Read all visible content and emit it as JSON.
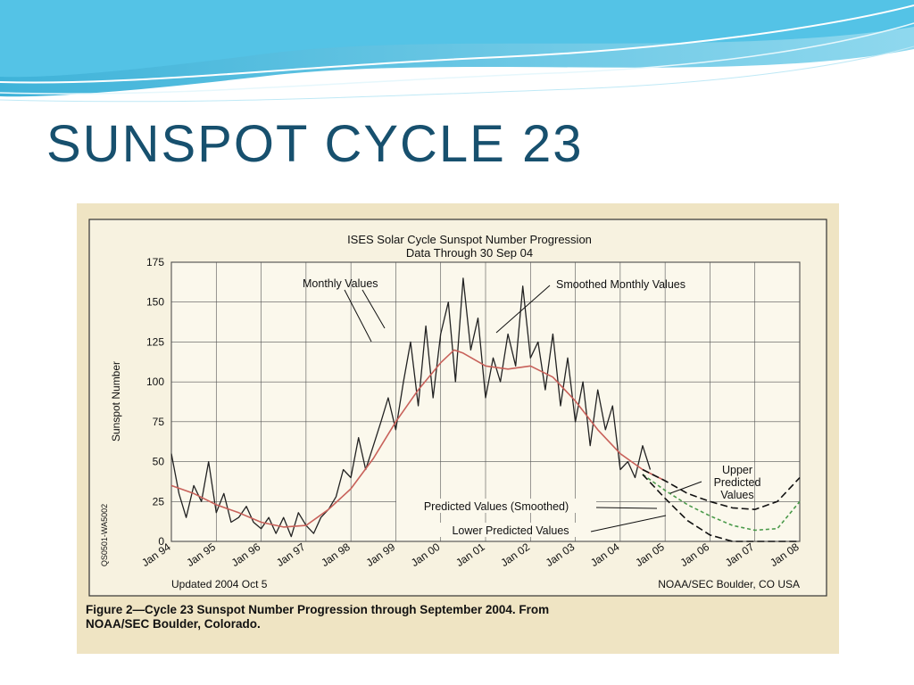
{
  "slide": {
    "title": "SUNSPOT  CYCLE  23"
  },
  "figure": {
    "caption_line1": "Figure 2—Cycle 23 Sunspot Number Progression through September 2004. From",
    "caption_line2": "NOAA/SEC Boulder, Colorado."
  },
  "chart_data": {
    "type": "line",
    "title": "ISES Solar Cycle Sunspot Number Progression",
    "subtitle": "Data Through 30 Sep 04",
    "ylabel": "Sunspot Number",
    "xlabel": "",
    "ylim": [
      0,
      175
    ],
    "yticks": [
      0,
      25,
      50,
      75,
      100,
      125,
      150,
      175
    ],
    "xlim": [
      1994.0,
      2008.0
    ],
    "xticks": [
      "Jan 94",
      "Jan 95",
      "Jan 96",
      "Jan 97",
      "Jan 98",
      "Jan 99",
      "Jan 00",
      "Jan 01",
      "Jan 02",
      "Jan 03",
      "Jan 04",
      "Jan 05",
      "Jan 06",
      "Jan 07",
      "Jan 08"
    ],
    "grid": true,
    "series": [
      {
        "name": "Monthly Values",
        "style": "solid",
        "color": "#222222",
        "x": [
          1994.0,
          1994.17,
          1994.33,
          1994.5,
          1994.67,
          1994.83,
          1995.0,
          1995.17,
          1995.33,
          1995.5,
          1995.67,
          1995.83,
          1996.0,
          1996.17,
          1996.33,
          1996.5,
          1996.67,
          1996.83,
          1997.0,
          1997.17,
          1997.33,
          1997.5,
          1997.67,
          1997.83,
          1998.0,
          1998.17,
          1998.33,
          1998.5,
          1998.67,
          1998.83,
          1999.0,
          1999.17,
          1999.33,
          1999.5,
          1999.67,
          1999.83,
          2000.0,
          2000.17,
          2000.33,
          2000.5,
          2000.67,
          2000.83,
          2001.0,
          2001.17,
          2001.33,
          2001.5,
          2001.67,
          2001.83,
          2002.0,
          2002.17,
          2002.33,
          2002.5,
          2002.67,
          2002.83,
          2003.0,
          2003.17,
          2003.33,
          2003.5,
          2003.67,
          2003.83,
          2004.0,
          2004.17,
          2004.33,
          2004.5,
          2004.67
        ],
        "values": [
          55,
          30,
          15,
          35,
          25,
          50,
          18,
          30,
          12,
          15,
          22,
          12,
          8,
          15,
          5,
          15,
          3,
          18,
          10,
          5,
          15,
          20,
          28,
          45,
          40,
          65,
          45,
          60,
          75,
          90,
          70,
          100,
          125,
          85,
          135,
          90,
          130,
          150,
          100,
          165,
          120,
          140,
          90,
          115,
          100,
          130,
          110,
          160,
          115,
          125,
          95,
          130,
          85,
          115,
          75,
          100,
          60,
          95,
          70,
          85,
          45,
          50,
          40,
          60,
          45
        ]
      },
      {
        "name": "Smoothed Monthly Values",
        "style": "solid",
        "color": "#c8615a",
        "x": [
          1994.0,
          1994.5,
          1995.0,
          1995.5,
          1996.0,
          1996.5,
          1997.0,
          1997.5,
          1998.0,
          1998.5,
          1999.0,
          1999.5,
          2000.0,
          2000.3,
          2000.5,
          2001.0,
          2001.5,
          2002.0,
          2002.5,
          2003.0,
          2003.5,
          2004.0,
          2004.5,
          2005.0
        ],
        "values": [
          35,
          30,
          23,
          18,
          12,
          9,
          10,
          20,
          33,
          52,
          75,
          95,
          112,
          120,
          118,
          110,
          108,
          110,
          103,
          88,
          70,
          55,
          45,
          38
        ]
      },
      {
        "name": "Upper Predicted Values",
        "style": "dashed",
        "color": "#111111",
        "x": [
          2004.5,
          2005.0,
          2005.5,
          2006.0,
          2006.5,
          2007.0,
          2007.5,
          2008.0
        ],
        "values": [
          45,
          38,
          30,
          25,
          21,
          20,
          25,
          40
        ]
      },
      {
        "name": "Predicted Values (Smoothed)",
        "style": "dashed",
        "color": "#4a9a4a",
        "x": [
          2004.5,
          2005.0,
          2005.5,
          2006.0,
          2006.5,
          2007.0,
          2007.5,
          2008.0
        ],
        "values": [
          42,
          32,
          23,
          16,
          10,
          7,
          8,
          25
        ]
      },
      {
        "name": "Lower Predicted Values",
        "style": "dashed",
        "color": "#111111",
        "x": [
          2004.5,
          2005.0,
          2005.5,
          2006.0,
          2006.5,
          2007.0,
          2007.5,
          2008.0
        ],
        "values": [
          42,
          27,
          13,
          4,
          0,
          0,
          0,
          0
        ]
      }
    ],
    "annotations": {
      "monthly": "Monthly Values",
      "smoothed": "Smoothed Monthly Values",
      "upper_line1": "Upper",
      "upper_line2": "Predicted",
      "upper_line3": "Values",
      "predicted": "Predicted Values (Smoothed)",
      "lower": "Lower Predicted Values",
      "updated": "Updated 2004 Oct 5",
      "source": "NOAA/SEC Boulder, CO USA",
      "doc_id": "QS0501-WA5002"
    }
  }
}
